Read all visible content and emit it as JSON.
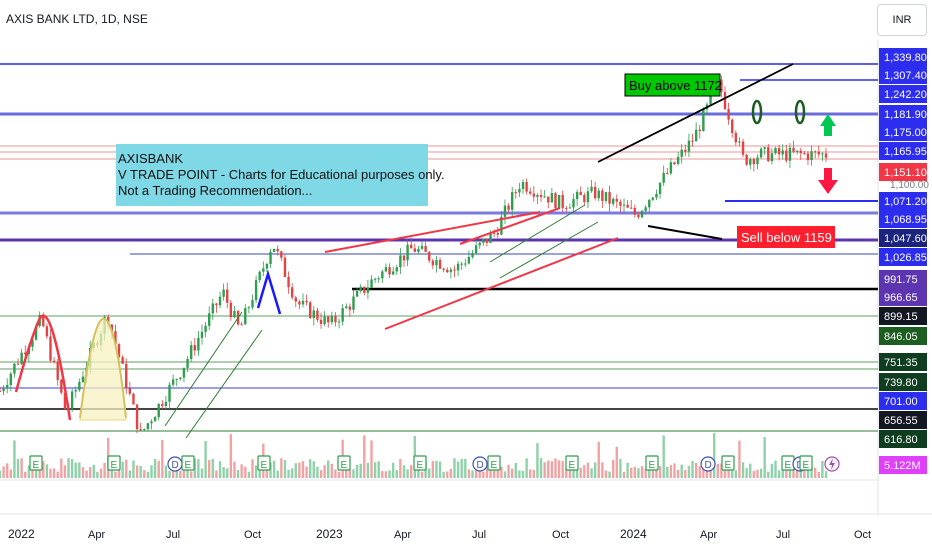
{
  "header": {
    "symbol_title": "AXIS BANK LTD, 1D, NSE",
    "currency": "INR"
  },
  "annotation": {
    "lines": [
      "AXISBANK",
      "V TRADE POINT - Charts for Educational purposes only.",
      "Not a Trading Recommendation..."
    ],
    "buy_label": "Buy above 1172",
    "sell_label": "Sell below 1159"
  },
  "colors": {
    "level_blue": "#3b3bd6",
    "level_green": "#1b5e20",
    "trend_red": "#f23645",
    "buy_bg": "#00c800",
    "sell_bg": "#ff1e2d",
    "note_bg": "#7fd8e6",
    "candle_green": "#2e9e4f",
    "candle_red": "#e04444"
  },
  "chart_data": {
    "type": "candlestick",
    "symbol": "AXIS BANK LTD",
    "interval": "1D",
    "exchange": "NSE",
    "currency": "INR",
    "x_tick_labels": [
      "2022",
      "Apr",
      "Jul",
      "Oct",
      "2023",
      "Apr",
      "Jul",
      "Oct",
      "2024",
      "Apr",
      "Jul",
      "Oct"
    ],
    "price_levels": [
      {
        "value": "1,339.80",
        "style": "blue"
      },
      {
        "value": "1,307.40",
        "style": "blue"
      },
      {
        "value": "1,242.20",
        "style": "blue"
      },
      {
        "value": "1,181.90",
        "style": "blue"
      },
      {
        "value": "1,175.00",
        "style": "blue"
      },
      {
        "value": "1,165.95",
        "style": "blue"
      },
      {
        "value": "1,151.10",
        "style": "red"
      },
      {
        "value": "1,071.20",
        "style": "blue"
      },
      {
        "value": "1,068.95",
        "style": "blue"
      },
      {
        "value": "1,047.60",
        "style": "navy"
      },
      {
        "value": "1,026.85",
        "style": "blue"
      },
      {
        "value": "991.75",
        "style": "purple"
      },
      {
        "value": "966.65",
        "style": "purple"
      },
      {
        "value": "899.15",
        "style": "dark"
      },
      {
        "value": "846.05",
        "style": "green"
      },
      {
        "value": "751.35",
        "style": "darkgreen"
      },
      {
        "value": "739.80",
        "style": "darkgreen"
      },
      {
        "value": "701.00",
        "style": "blue"
      },
      {
        "value": "656.55",
        "style": "dark"
      },
      {
        "value": "616.80",
        "style": "darkgreen"
      }
    ],
    "current_price_label": "1,100.00",
    "volume_label": "5.122M",
    "annotations": [
      "Buy above 1172",
      "Sell below 1159"
    ],
    "close_path_approx": [
      [
        0,
        740
      ],
      [
        0.05,
        870
      ],
      [
        0.08,
        700
      ],
      [
        0.13,
        880
      ],
      [
        0.17,
        660
      ],
      [
        0.22,
        780
      ],
      [
        0.27,
        920
      ],
      [
        0.29,
        850
      ],
      [
        0.33,
        1010
      ],
      [
        0.36,
        900
      ],
      [
        0.4,
        860
      ],
      [
        0.45,
        940
      ],
      [
        0.5,
        1000
      ],
      [
        0.55,
        960
      ],
      [
        0.6,
        1030
      ],
      [
        0.63,
        1120
      ],
      [
        0.68,
        1080
      ],
      [
        0.72,
        1100
      ],
      [
        0.77,
        1060
      ],
      [
        0.8,
        1120
      ],
      [
        0.84,
        1200
      ],
      [
        0.87,
        1300
      ],
      [
        0.9,
        1160
      ],
      [
        0.92,
        1170
      ]
    ]
  }
}
